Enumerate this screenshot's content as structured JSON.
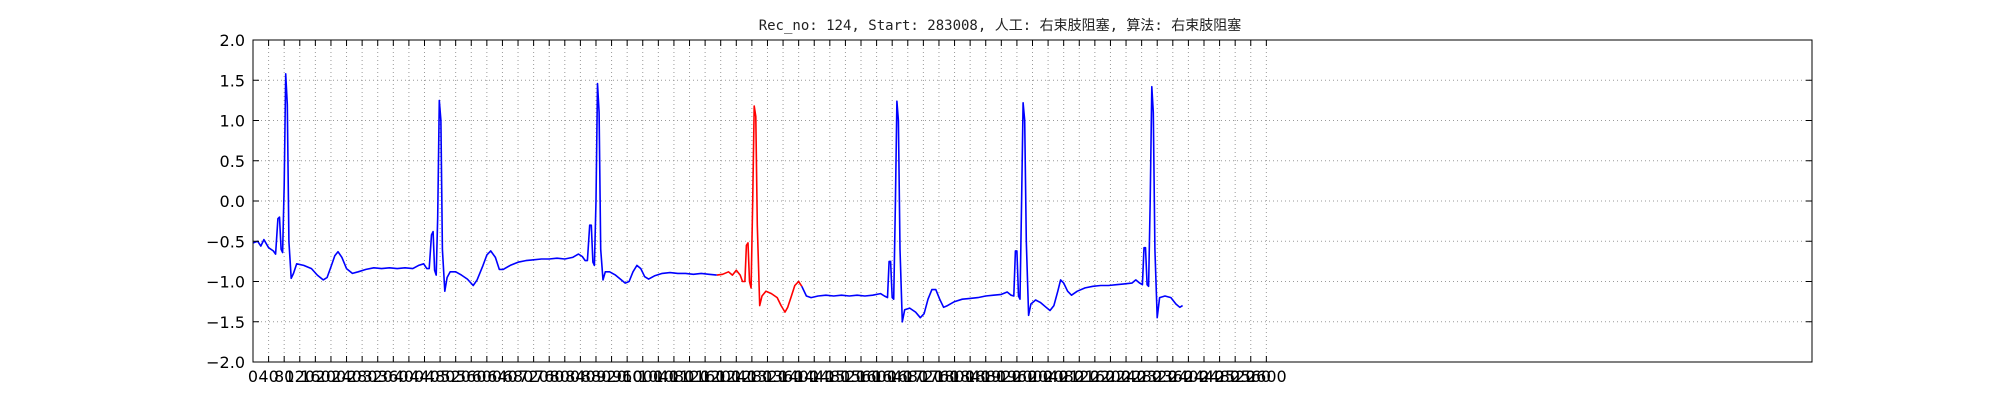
{
  "chart_data": {
    "type": "line",
    "title": "Rec_no: 124, Start: 283008, 人工: 右束肢阻塞, 算法: 右束肢阻塞",
    "xlabel": "",
    "ylabel": "",
    "xlim": [
      0,
      4000
    ],
    "ylim": [
      -2.0,
      2.0
    ],
    "grid": true,
    "y_ticks": [
      -2.0,
      -1.5,
      -1.0,
      -0.5,
      0.0,
      0.5,
      1.0,
      1.5,
      2.0
    ],
    "y_tick_labels": [
      "−2.0",
      "−1.5",
      "−1.0",
      "−0.5",
      "0.0",
      "0.5",
      "1.0",
      "1.5",
      "2.0"
    ],
    "x_ticks": [
      0,
      40,
      80,
      120,
      160,
      200,
      240,
      280,
      320,
      360,
      400,
      440,
      480,
      520,
      560,
      600,
      640,
      680,
      720,
      760,
      800,
      840,
      880,
      920,
      960,
      1000,
      1040,
      1080,
      1120,
      1160,
      1200,
      1240,
      1280,
      1320,
      1360,
      1400,
      1440,
      1480,
      1520,
      1560,
      1600,
      1640,
      1680,
      1720,
      1760,
      1800,
      1840,
      1880,
      1920,
      1960,
      2000,
      2040,
      2080,
      2120,
      2160,
      2200,
      2240,
      2280,
      2320,
      2360,
      2400,
      2440,
      2480,
      2520,
      2560,
      2600
    ],
    "x_tick_labels": [
      "0",
      "40",
      "80",
      "120",
      "160",
      "200",
      "240",
      "280",
      "320",
      "360",
      "400",
      "440",
      "480",
      "520",
      "560",
      "600",
      "640",
      "680",
      "720",
      "760",
      "800",
      "840",
      "880",
      "920",
      "960",
      "1000",
      "1040",
      "1080",
      "1120",
      "1160",
      "1200",
      "1240",
      "1280",
      "1320",
      "1360",
      "1400",
      "1440",
      "1480",
      "1520",
      "1560",
      "1600",
      "1640",
      "1680",
      "1720",
      "1760",
      "1800",
      "1840",
      "1880",
      "1920",
      "1960",
      "2000",
      "2040",
      "2080",
      "2120",
      "2160",
      "2200",
      "2240",
      "2280",
      "2320",
      "2360",
      "2400",
      "2440",
      "2480",
      "2520",
      "2560",
      "2600"
    ],
    "baseline": [
      [
        0,
        -0.52
      ],
      [
        12,
        -0.5
      ],
      [
        20,
        -0.56
      ],
      [
        28,
        -0.48
      ],
      [
        40,
        -0.58
      ],
      [
        52,
        -0.62
      ],
      [
        58,
        -0.66
      ],
      [
        64,
        -0.22
      ],
      [
        68,
        -0.2
      ],
      [
        72,
        -0.6
      ],
      [
        76,
        -0.64
      ],
      [
        80,
        0.2
      ],
      [
        84,
        1.58
      ],
      [
        88,
        1.2
      ],
      [
        92,
        -0.5
      ],
      [
        98,
        -0.96
      ],
      [
        104,
        -0.9
      ],
      [
        112,
        -0.78
      ],
      [
        130,
        -0.8
      ],
      [
        150,
        -0.84
      ],
      [
        165,
        -0.92
      ],
      [
        180,
        -0.98
      ],
      [
        190,
        -0.95
      ],
      [
        200,
        -0.82
      ],
      [
        210,
        -0.68
      ],
      [
        218,
        -0.63
      ],
      [
        228,
        -0.7
      ],
      [
        240,
        -0.84
      ],
      [
        255,
        -0.9
      ],
      [
        270,
        -0.88
      ],
      [
        290,
        -0.85
      ],
      [
        310,
        -0.83
      ],
      [
        330,
        -0.84
      ],
      [
        350,
        -0.83
      ],
      [
        370,
        -0.84
      ],
      [
        390,
        -0.83
      ],
      [
        410,
        -0.84
      ],
      [
        425,
        -0.8
      ],
      [
        438,
        -0.78
      ],
      [
        446,
        -0.84
      ],
      [
        452,
        -0.84
      ],
      [
        458,
        -0.42
      ],
      [
        462,
        -0.38
      ],
      [
        466,
        -0.86
      ],
      [
        470,
        -0.92
      ],
      [
        474,
        -0.2
      ],
      [
        478,
        1.25
      ],
      [
        482,
        1.0
      ],
      [
        486,
        -0.6
      ],
      [
        492,
        -1.12
      ],
      [
        498,
        -0.95
      ],
      [
        506,
        -0.88
      ],
      [
        520,
        -0.88
      ],
      [
        535,
        -0.92
      ],
      [
        550,
        -0.97
      ],
      [
        565,
        -1.05
      ],
      [
        575,
        -0.98
      ],
      [
        590,
        -0.8
      ],
      [
        600,
        -0.67
      ],
      [
        610,
        -0.62
      ],
      [
        622,
        -0.7
      ],
      [
        632,
        -0.85
      ],
      [
        642,
        -0.85
      ],
      [
        660,
        -0.8
      ],
      [
        680,
        -0.76
      ],
      [
        700,
        -0.74
      ],
      [
        720,
        -0.73
      ],
      [
        740,
        -0.72
      ],
      [
        760,
        -0.72
      ],
      [
        780,
        -0.71
      ],
      [
        800,
        -0.72
      ],
      [
        820,
        -0.7
      ],
      [
        835,
        -0.66
      ],
      [
        845,
        -0.69
      ],
      [
        852,
        -0.74
      ],
      [
        858,
        -0.74
      ],
      [
        864,
        -0.3
      ],
      [
        868,
        -0.3
      ],
      [
        872,
        -0.76
      ],
      [
        876,
        -0.8
      ],
      [
        880,
        0.0
      ],
      [
        884,
        1.46
      ],
      [
        888,
        1.1
      ],
      [
        892,
        -0.6
      ],
      [
        898,
        -0.98
      ],
      [
        904,
        -0.88
      ],
      [
        915,
        -0.88
      ],
      [
        930,
        -0.92
      ],
      [
        945,
        -0.98
      ],
      [
        955,
        -1.02
      ],
      [
        965,
        -1.0
      ],
      [
        975,
        -0.88
      ],
      [
        985,
        -0.8
      ],
      [
        995,
        -0.84
      ],
      [
        1005,
        -0.94
      ],
      [
        1015,
        -0.97
      ],
      [
        1030,
        -0.93
      ],
      [
        1050,
        -0.9
      ],
      [
        1070,
        -0.89
      ],
      [
        1090,
        -0.9
      ],
      [
        1110,
        -0.9
      ],
      [
        1130,
        -0.91
      ],
      [
        1150,
        -0.9
      ],
      [
        1170,
        -0.91
      ],
      [
        1190,
        -0.92
      ]
    ],
    "series": [
      {
        "points": [
          [
            1190,
            -0.92
          ],
          [
            1205,
            -0.91
          ],
          [
            1220,
            -0.88
          ],
          [
            1230,
            -0.92
          ],
          [
            1240,
            -0.86
          ],
          [
            1250,
            -0.92
          ],
          [
            1256,
            -1.0
          ],
          [
            1262,
            -1.0
          ],
          [
            1266,
            -0.55
          ],
          [
            1270,
            -0.52
          ],
          [
            1274,
            -1.0
          ],
          [
            1278,
            -1.08
          ],
          [
            1282,
            0.0
          ],
          [
            1286,
            1.18
          ],
          [
            1290,
            1.05
          ],
          [
            1294,
            -0.3
          ],
          [
            1300,
            -1.3
          ],
          [
            1306,
            -1.18
          ],
          [
            1316,
            -1.12
          ],
          [
            1330,
            -1.15
          ],
          [
            1345,
            -1.2
          ],
          [
            1355,
            -1.3
          ],
          [
            1365,
            -1.38
          ],
          [
            1372,
            -1.32
          ],
          [
            1380,
            -1.2
          ],
          [
            1390,
            -1.05
          ],
          [
            1400,
            -1.0
          ],
          [
            1408,
            -1.06
          ]
        ]
      },
      {
        "points": [
          [
            1408,
            -1.06
          ],
          [
            1420,
            -1.18
          ],
          [
            1432,
            -1.2
          ],
          [
            1450,
            -1.18
          ],
          [
            1470,
            -1.17
          ],
          [
            1490,
            -1.18
          ],
          [
            1510,
            -1.17
          ],
          [
            1530,
            -1.18
          ],
          [
            1550,
            -1.17
          ],
          [
            1570,
            -1.18
          ],
          [
            1590,
            -1.17
          ],
          [
            1610,
            -1.15
          ],
          [
            1620,
            -1.18
          ],
          [
            1628,
            -1.2
          ],
          [
            1632,
            -0.75
          ],
          [
            1636,
            -0.75
          ],
          [
            1640,
            -1.2
          ],
          [
            1644,
            -1.22
          ],
          [
            1648,
            -0.1
          ],
          [
            1652,
            1.24
          ],
          [
            1656,
            1.0
          ],
          [
            1660,
            -0.6
          ],
          [
            1666,
            -1.5
          ],
          [
            1672,
            -1.35
          ],
          [
            1685,
            -1.33
          ],
          [
            1700,
            -1.38
          ],
          [
            1712,
            -1.45
          ],
          [
            1722,
            -1.4
          ],
          [
            1732,
            -1.22
          ],
          [
            1742,
            -1.1
          ],
          [
            1752,
            -1.1
          ],
          [
            1762,
            -1.22
          ],
          [
            1772,
            -1.32
          ],
          [
            1782,
            -1.3
          ],
          [
            1800,
            -1.25
          ],
          [
            1820,
            -1.22
          ],
          [
            1840,
            -1.21
          ],
          [
            1860,
            -1.2
          ],
          [
            1880,
            -1.18
          ],
          [
            1900,
            -1.17
          ],
          [
            1920,
            -1.16
          ],
          [
            1935,
            -1.13
          ],
          [
            1945,
            -1.17
          ],
          [
            1952,
            -1.18
          ],
          [
            1956,
            -0.62
          ],
          [
            1960,
            -0.62
          ],
          [
            1964,
            -1.18
          ],
          [
            1968,
            -1.22
          ],
          [
            1972,
            0.0
          ],
          [
            1976,
            1.22
          ],
          [
            1980,
            1.0
          ],
          [
            1984,
            -0.5
          ],
          [
            1990,
            -1.42
          ],
          [
            1996,
            -1.28
          ],
          [
            2008,
            -1.23
          ],
          [
            2020,
            -1.26
          ],
          [
            2035,
            -1.32
          ],
          [
            2045,
            -1.36
          ],
          [
            2055,
            -1.3
          ],
          [
            2065,
            -1.12
          ],
          [
            2072,
            -0.98
          ],
          [
            2080,
            -1.02
          ],
          [
            2090,
            -1.12
          ],
          [
            2100,
            -1.17
          ],
          [
            2115,
            -1.12
          ],
          [
            2135,
            -1.08
          ],
          [
            2155,
            -1.06
          ],
          [
            2175,
            -1.05
          ],
          [
            2195,
            -1.05
          ],
          [
            2215,
            -1.04
          ],
          [
            2235,
            -1.03
          ],
          [
            2255,
            -1.02
          ],
          [
            2265,
            -0.98
          ],
          [
            2275,
            -1.02
          ],
          [
            2282,
            -1.04
          ],
          [
            2286,
            -0.58
          ],
          [
            2290,
            -0.58
          ],
          [
            2294,
            -1.04
          ],
          [
            2298,
            -1.06
          ],
          [
            2302,
            0.0
          ],
          [
            2306,
            1.42
          ],
          [
            2310,
            1.1
          ],
          [
            2314,
            -0.6
          ],
          [
            2320,
            -1.45
          ],
          [
            2326,
            -1.2
          ],
          [
            2340,
            -1.18
          ],
          [
            2355,
            -1.2
          ],
          [
            2368,
            -1.28
          ],
          [
            2378,
            -1.32
          ],
          [
            2385,
            -1.3
          ]
        ]
      }
    ]
  }
}
